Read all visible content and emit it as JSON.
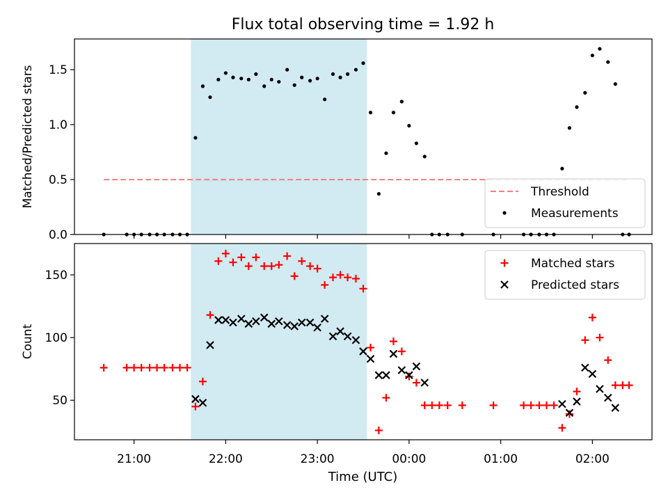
{
  "chart_data": {
    "title": "Flux total observing time = 1.92 h",
    "xlabel": "Time (UTC)",
    "x_unit": "hours UTC (values >= 24 are after midnight)",
    "x_range": [
      20.35,
      26.65
    ],
    "xticks": [
      {
        "x": 21,
        "label": "21:00"
      },
      {
        "x": 22,
        "label": "22:00"
      },
      {
        "x": 23,
        "label": "23:00"
      },
      {
        "x": 24,
        "label": "00:00"
      },
      {
        "x": 25,
        "label": "01:00"
      },
      {
        "x": 26,
        "label": "02:00"
      }
    ],
    "highlight": {
      "x_start": 21.62,
      "x_end": 23.54,
      "color": "#add8e6"
    },
    "panels": [
      {
        "id": "ratio",
        "type": "scatter",
        "ylabel": "Matched/Predicted stars",
        "ylim": [
          0,
          1.78
        ],
        "yticks": [
          {
            "y": 0.0,
            "label": "0.0"
          },
          {
            "y": 0.5,
            "label": "0.5"
          },
          {
            "y": 1.0,
            "label": "1.0"
          },
          {
            "y": 1.5,
            "label": "1.5"
          }
        ],
        "legend": {
          "placement": "lower-right",
          "entries": [
            "Threshold",
            "Measurements"
          ]
        },
        "threshold": {
          "name": "Threshold",
          "y": 0.5,
          "x_start": 20.67,
          "x_end": 26.4,
          "color": "#f08080"
        },
        "series": [
          {
            "name": "Measurements",
            "marker": "dot",
            "color": "#000000",
            "points": [
              [
                20.67,
                0
              ],
              [
                20.92,
                0
              ],
              [
                21.0,
                0
              ],
              [
                21.08,
                0
              ],
              [
                21.17,
                0
              ],
              [
                21.25,
                0
              ],
              [
                21.33,
                0
              ],
              [
                21.42,
                0
              ],
              [
                21.5,
                0
              ],
              [
                21.58,
                0
              ],
              [
                21.67,
                0.88
              ],
              [
                21.75,
                1.35
              ],
              [
                21.83,
                1.25
              ],
              [
                21.92,
                1.41
              ],
              [
                22.0,
                1.47
              ],
              [
                22.08,
                1.43
              ],
              [
                22.17,
                1.42
              ],
              [
                22.25,
                1.41
              ],
              [
                22.33,
                1.46
              ],
              [
                22.42,
                1.35
              ],
              [
                22.5,
                1.41
              ],
              [
                22.58,
                1.39
              ],
              [
                22.67,
                1.5
              ],
              [
                22.75,
                1.36
              ],
              [
                22.83,
                1.43
              ],
              [
                22.92,
                1.4
              ],
              [
                23.0,
                1.42
              ],
              [
                23.08,
                1.23
              ],
              [
                23.17,
                1.46
              ],
              [
                23.25,
                1.43
              ],
              [
                23.33,
                1.46
              ],
              [
                23.42,
                1.5
              ],
              [
                23.5,
                1.56
              ],
              [
                23.58,
                1.11
              ],
              [
                23.67,
                0.37
              ],
              [
                23.75,
                0.74
              ],
              [
                23.83,
                1.11
              ],
              [
                23.92,
                1.21
              ],
              [
                24.0,
                0.99
              ],
              [
                24.08,
                0.83
              ],
              [
                24.17,
                0.71
              ],
              [
                24.25,
                0
              ],
              [
                24.33,
                0
              ],
              [
                24.42,
                0
              ],
              [
                24.58,
                0
              ],
              [
                24.92,
                0
              ],
              [
                25.25,
                0
              ],
              [
                25.33,
                0
              ],
              [
                25.42,
                0
              ],
              [
                25.5,
                0
              ],
              [
                25.58,
                0
              ],
              [
                25.67,
                0.6
              ],
              [
                25.75,
                0.97
              ],
              [
                25.83,
                1.16
              ],
              [
                25.92,
                1.29
              ],
              [
                26.0,
                1.63
              ],
              [
                26.08,
                1.69
              ],
              [
                26.17,
                1.57
              ],
              [
                26.25,
                1.37
              ],
              [
                26.33,
                0
              ],
              [
                26.4,
                0
              ]
            ]
          }
        ]
      },
      {
        "id": "count",
        "type": "scatter",
        "ylabel": "Count",
        "ylim": [
          18.5,
          175
        ],
        "yticks": [
          {
            "y": 50,
            "label": "50"
          },
          {
            "y": 100,
            "label": "100"
          },
          {
            "y": 150,
            "label": "150"
          }
        ],
        "legend": {
          "placement": "upper-right",
          "entries": [
            "Matched stars",
            "Predicted stars"
          ]
        },
        "series": [
          {
            "name": "Matched stars",
            "marker": "plus",
            "color": "#ff0000",
            "points": [
              [
                20.67,
                76
              ],
              [
                20.92,
                76
              ],
              [
                21.0,
                76
              ],
              [
                21.08,
                76
              ],
              [
                21.17,
                76
              ],
              [
                21.25,
                76
              ],
              [
                21.33,
                76
              ],
              [
                21.42,
                76
              ],
              [
                21.5,
                76
              ],
              [
                21.58,
                76
              ],
              [
                21.67,
                45
              ],
              [
                21.75,
                65
              ],
              [
                21.83,
                118
              ],
              [
                21.92,
                161
              ],
              [
                22.0,
                167
              ],
              [
                22.08,
                160
              ],
              [
                22.17,
                164
              ],
              [
                22.25,
                157
              ],
              [
                22.33,
                164
              ],
              [
                22.42,
                157
              ],
              [
                22.5,
                157
              ],
              [
                22.58,
                158
              ],
              [
                22.67,
                165
              ],
              [
                22.75,
                149
              ],
              [
                22.83,
                161
              ],
              [
                22.92,
                157
              ],
              [
                23.0,
                155
              ],
              [
                23.08,
                142
              ],
              [
                23.17,
                148
              ],
              [
                23.25,
                150
              ],
              [
                23.33,
                148
              ],
              [
                23.42,
                147
              ],
              [
                23.5,
                139
              ],
              [
                23.58,
                92
              ],
              [
                23.67,
                26
              ],
              [
                23.75,
                52
              ],
              [
                23.83,
                97
              ],
              [
                23.92,
                89
              ],
              [
                24.0,
                69
              ],
              [
                24.08,
                64
              ],
              [
                24.17,
                46
              ],
              [
                24.25,
                46
              ],
              [
                24.33,
                46
              ],
              [
                24.42,
                46
              ],
              [
                24.58,
                46
              ],
              [
                24.92,
                46
              ],
              [
                25.25,
                46
              ],
              [
                25.33,
                46
              ],
              [
                25.42,
                46
              ],
              [
                25.5,
                46
              ],
              [
                25.58,
                46
              ],
              [
                25.67,
                28
              ],
              [
                25.75,
                39
              ],
              [
                25.83,
                57
              ],
              [
                25.92,
                98
              ],
              [
                26.0,
                116
              ],
              [
                26.08,
                100
              ],
              [
                26.17,
                82
              ],
              [
                26.25,
                62
              ],
              [
                26.33,
                62
              ],
              [
                26.4,
                62
              ]
            ]
          },
          {
            "name": "Predicted stars",
            "marker": "x",
            "color": "#000000",
            "points": [
              [
                21.67,
                51
              ],
              [
                21.75,
                48
              ],
              [
                21.83,
                94
              ],
              [
                21.92,
                114
              ],
              [
                22.0,
                114
              ],
              [
                22.08,
                112
              ],
              [
                22.17,
                115
              ],
              [
                22.25,
                111
              ],
              [
                22.33,
                113
              ],
              [
                22.42,
                116
              ],
              [
                22.5,
                111
              ],
              [
                22.58,
                113
              ],
              [
                22.67,
                110
              ],
              [
                22.75,
                109
              ],
              [
                22.83,
                112
              ],
              [
                22.92,
                112
              ],
              [
                23.0,
                108
              ],
              [
                23.08,
                115
              ],
              [
                23.17,
                101
              ],
              [
                23.25,
                105
              ],
              [
                23.33,
                101
              ],
              [
                23.42,
                98
              ],
              [
                23.5,
                89
              ],
              [
                23.58,
                83
              ],
              [
                23.67,
                70
              ],
              [
                23.75,
                70
              ],
              [
                23.83,
                87
              ],
              [
                23.92,
                74
              ],
              [
                24.0,
                70
              ],
              [
                24.08,
                77
              ],
              [
                24.17,
                64
              ],
              [
                25.67,
                47
              ],
              [
                25.75,
                40
              ],
              [
                25.83,
                49
              ],
              [
                25.92,
                76
              ],
              [
                26.0,
                71
              ],
              [
                26.08,
                59
              ],
              [
                26.17,
                52
              ],
              [
                26.25,
                44
              ]
            ]
          }
        ]
      }
    ]
  }
}
